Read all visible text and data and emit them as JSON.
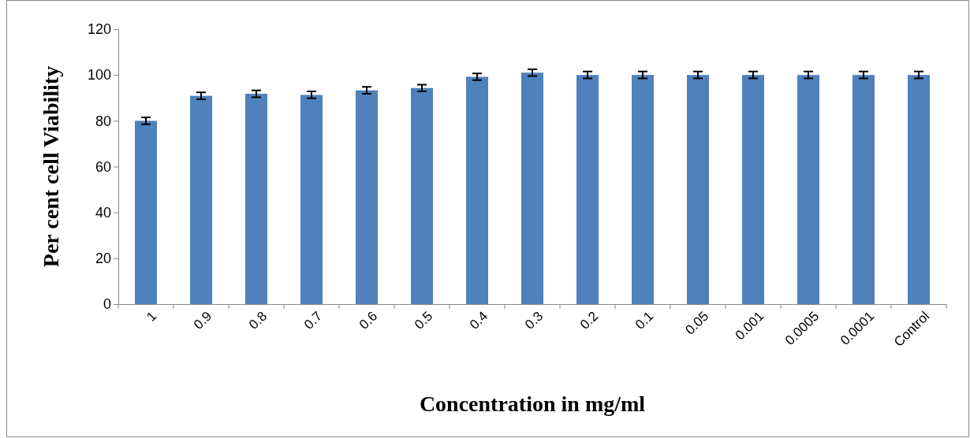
{
  "chart_data": {
    "type": "bar",
    "xlabel": "Concentration in mg/ml",
    "ylabel": "Per cent cell Viability",
    "categories": [
      "1",
      "0.9",
      "0.8",
      "0.7",
      "0.6",
      "0.5",
      "0.4",
      "0.3",
      "0.2",
      "0.1",
      "0.05",
      "0.001",
      "0.0005",
      "0.0001",
      "Control"
    ],
    "values": [
      80,
      90.9,
      91.8,
      91.3,
      93.3,
      94.3,
      99.2,
      101,
      100,
      100,
      100,
      100,
      100,
      100,
      100
    ],
    "errors": [
      1.5,
      1.5,
      1.5,
      1.5,
      1.5,
      1.5,
      1.5,
      1.5,
      1.5,
      1.5,
      1.5,
      1.5,
      1.5,
      1.5,
      1.5
    ],
    "color": "#4f81bd",
    "ylim": [
      0,
      120
    ],
    "yticks": [
      0,
      20,
      40,
      60,
      80,
      100,
      120
    ],
    "grid": false
  }
}
